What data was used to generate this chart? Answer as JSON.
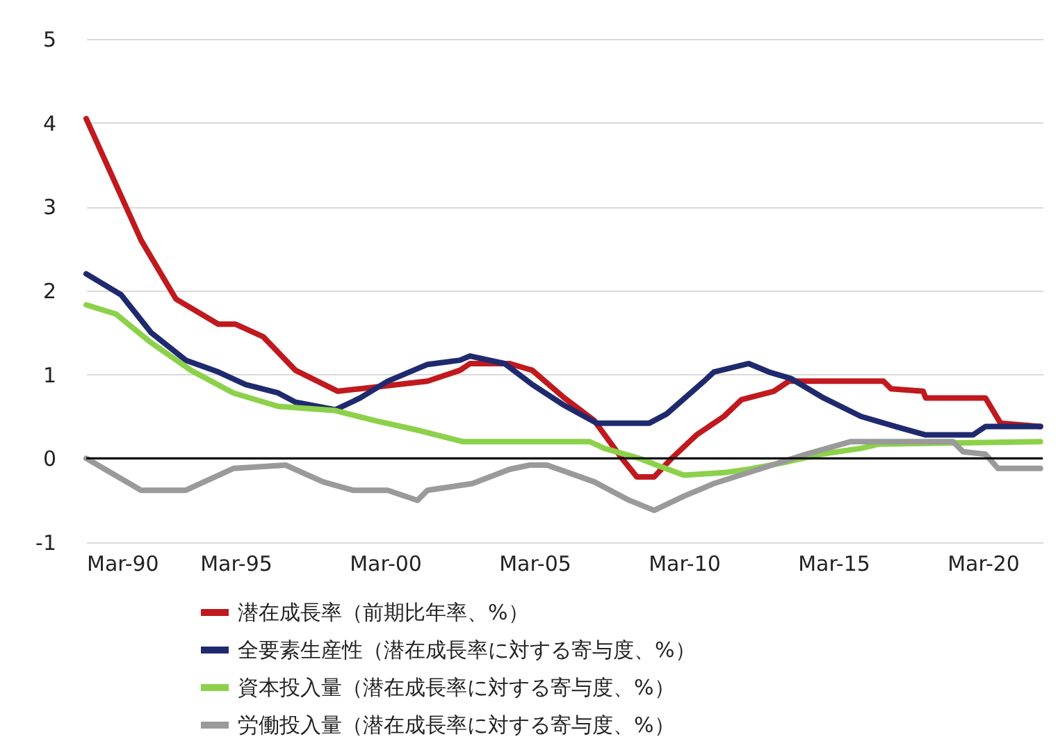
{
  "chart_data": {
    "type": "line",
    "xlim": [
      "1990-03",
      "2022-03"
    ],
    "xticks": [
      {
        "value": "1990-03",
        "label": "Mar-90"
      },
      {
        "value": "1995-03",
        "label": "Mar-95"
      },
      {
        "value": "2000-03",
        "label": "Mar-00"
      },
      {
        "value": "2005-03",
        "label": "Mar-05"
      },
      {
        "value": "2010-03",
        "label": "Mar-10"
      },
      {
        "value": "2015-03",
        "label": "Mar-15"
      },
      {
        "value": "2020-03",
        "label": "Mar-20"
      }
    ],
    "ylim": [
      -1,
      5
    ],
    "yticks": [
      -1,
      0,
      1,
      2,
      3,
      4,
      5
    ],
    "grid": "y",
    "legend": "bottom",
    "line_style": "solid",
    "marker": "none",
    "ref_lines": [
      {
        "axis": "y",
        "value": 0,
        "color": "#000000"
      }
    ],
    "series": [
      {
        "name": "潜在成長率（前期比年率、%）",
        "color": "#c0191e",
        "x": [
          "1990-03",
          "1992-01",
          "1993-03",
          "1994-08",
          "1995-03",
          "1996-02",
          "1997-03",
          "1998-08",
          "1999-05",
          "2001-08",
          "2002-09",
          "2003-01",
          "2004-05",
          "2005-02",
          "2006-03",
          "2007-03",
          "2008-02",
          "2008-08",
          "2009-03",
          "2009-10",
          "2010-08",
          "2011-07",
          "2012-02",
          "2013-03",
          "2013-09",
          "2016-11",
          "2017-02",
          "2018-03",
          "2018-04",
          "2020-04",
          "2020-10",
          "2022-02"
        ],
        "values": [
          4.05,
          2.6,
          1.9,
          1.6,
          1.6,
          1.45,
          1.05,
          0.8,
          0.83,
          0.92,
          1.05,
          1.13,
          1.13,
          1.05,
          0.72,
          0.45,
          0,
          -0.22,
          -0.22,
          0,
          0.28,
          0.5,
          0.7,
          0.8,
          0.92,
          0.92,
          0.83,
          0.8,
          0.72,
          0.72,
          0.42,
          0.38
        ]
      },
      {
        "name": "全要素生産性（潜在成長率に対する寄与度、%）",
        "color": "#1f2a6e",
        "x": [
          "1990-03",
          "1991-05",
          "1992-05",
          "1993-07",
          "1994-08",
          "1995-07",
          "1996-08",
          "1997-03",
          "1998-07",
          "1999-05",
          "2000-04",
          "2001-08",
          "2002-09",
          "2003-01",
          "2004-03",
          "2005-02",
          "2006-03",
          "2007-04",
          "2009-01",
          "2009-08",
          "2010-11",
          "2011-03",
          "2012-05",
          "2013-01",
          "2013-10",
          "2014-11",
          "2016-02",
          "2017-05",
          "2018-04",
          "2019-11",
          "2020-04",
          "2022-02"
        ],
        "values": [
          2.2,
          1.95,
          1.5,
          1.17,
          1.03,
          0.88,
          0.78,
          0.67,
          0.58,
          0.72,
          0.92,
          1.12,
          1.17,
          1.22,
          1.13,
          0.88,
          0.63,
          0.42,
          0.42,
          0.53,
          0.92,
          1.03,
          1.13,
          1.03,
          0.95,
          0.72,
          0.5,
          0.37,
          0.28,
          0.28,
          0.38,
          0.38
        ]
      },
      {
        "name": "資本投入量（潜在成長率に対する寄与度、%）",
        "color": "#8cd14a",
        "x": [
          "1990-03",
          "1991-03",
          "1992-05",
          "1993-09",
          "1995-02",
          "1996-08",
          "1998-07",
          "1999-11",
          "2001-05",
          "2002-10",
          "2007-01",
          "2007-07",
          "2008-09",
          "2009-04",
          "2010-03",
          "2011-07",
          "2012-05",
          "2013-07",
          "2014-10",
          "2016-02",
          "2016-09",
          "2022-02"
        ],
        "values": [
          1.83,
          1.72,
          1.38,
          1.05,
          0.78,
          0.62,
          0.57,
          0.45,
          0.33,
          0.2,
          0.2,
          0.12,
          0,
          -0.08,
          -0.2,
          -0.17,
          -0.13,
          -0.05,
          0.05,
          0.12,
          0.17,
          0.2
        ]
      },
      {
        "name": "労働投入量（潜在成長率に対する寄与度、%）",
        "color": "#9a9a9a",
        "x": [
          "1990-03",
          "1992-01",
          "1993-07",
          "1995-02",
          "1996-11",
          "1998-02",
          "1999-02",
          "2000-04",
          "2001-04",
          "2001-08",
          "2003-02",
          "2004-05",
          "2005-01",
          "2005-08",
          "2007-03",
          "2008-05",
          "2009-03",
          "2010-03",
          "2011-03",
          "2012-09",
          "2014-04",
          "2015-10",
          "2019-03",
          "2019-07",
          "2020-04",
          "2020-09",
          "2022-02"
        ],
        "values": [
          0,
          -0.38,
          -0.38,
          -0.12,
          -0.08,
          -0.28,
          -0.38,
          -0.38,
          -0.5,
          -0.38,
          -0.3,
          -0.13,
          -0.08,
          -0.08,
          -0.28,
          -0.5,
          -0.62,
          -0.45,
          -0.3,
          -0.13,
          0.05,
          0.2,
          0.2,
          0.08,
          0.05,
          -0.12,
          -0.12
        ]
      }
    ]
  }
}
